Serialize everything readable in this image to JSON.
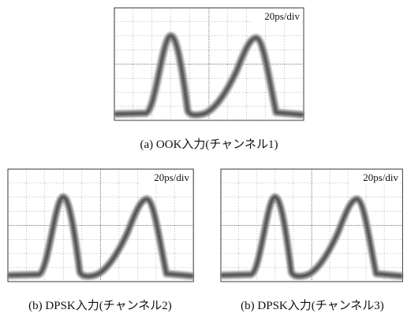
{
  "panels": [
    {
      "scale": "20ps/div",
      "caption": "(a) OOK入力(チャンネル1)"
    },
    {
      "scale": "20ps/div",
      "caption": "(b) DPSK入力(チャンネル2)"
    },
    {
      "scale": "20ps/div",
      "caption": "(b) DPSK入力(チャンネル3)"
    }
  ]
}
